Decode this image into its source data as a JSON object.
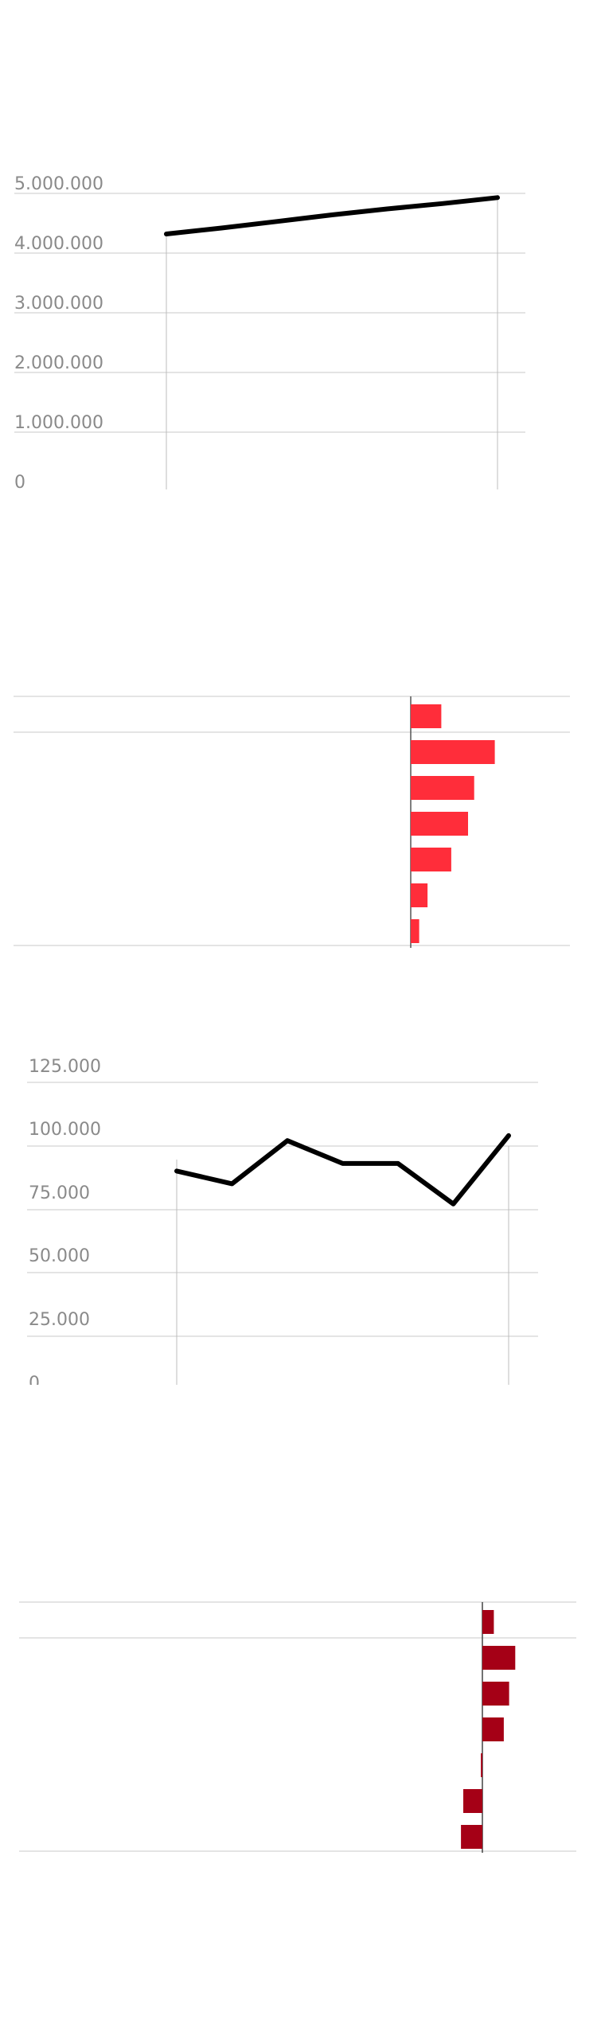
{
  "chart_data": [
    {
      "type": "line",
      "x": [
        0,
        1,
        2,
        3,
        4,
        5,
        6
      ],
      "values": [
        4320000,
        4420000,
        4530000,
        4640000,
        4740000,
        4830000,
        4930000
      ],
      "ylim": [
        0,
        5000000
      ],
      "y_ticks": [
        "0",
        "1.000.000",
        "2.000.000",
        "3.000.000",
        "4.000.000",
        "5.000.000"
      ],
      "grid": true,
      "vertical_markers_at": [
        0,
        6
      ],
      "colors": {
        "line": "#000000",
        "grid": "#c8c8c8"
      }
    },
    {
      "type": "bar",
      "orientation": "horizontal",
      "values": [
        4,
        11,
        8.3,
        7.5,
        5.3,
        2.2,
        1.1
      ],
      "grid": true,
      "colors": {
        "bar": "#ff2d3a"
      }
    },
    {
      "type": "line",
      "x": [
        0,
        1,
        2,
        3,
        4,
        5,
        6
      ],
      "values": [
        90000,
        85000,
        102000,
        93000,
        93000,
        77000,
        104000
      ],
      "ylim": [
        0,
        125000
      ],
      "y_ticks": [
        "0",
        "25.000",
        "50.000",
        "75.000",
        "100.000",
        "125.000"
      ],
      "grid": true,
      "vertical_markers_at": [
        0,
        6
      ],
      "colors": {
        "line": "#000000",
        "grid": "#c8c8c8"
      }
    },
    {
      "type": "bar",
      "orientation": "horizontal",
      "values": [
        1.5,
        4.3,
        3.5,
        2.8,
        -0.2,
        -2.5,
        -2.8
      ],
      "grid": true,
      "colors": {
        "bar": "#a50016"
      }
    }
  ]
}
